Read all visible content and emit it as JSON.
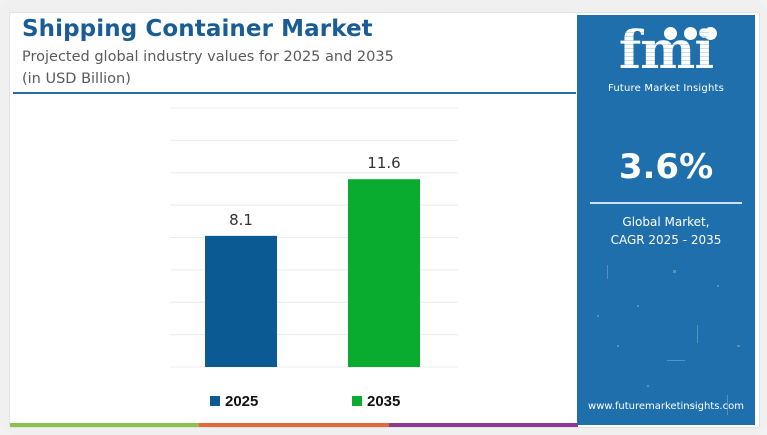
{
  "header": {
    "title": "Shipping Container Market",
    "subtitle": "Projected global industry values for 2025 and 2035",
    "unit_note": "(in USD Billion)"
  },
  "chart_data": {
    "type": "bar",
    "title": "Shipping Container Market",
    "subtitle": "Projected global industry values for 2025 and 2035",
    "ylabel": "USD Billion",
    "xlabel": "",
    "categories": [
      "2025",
      "2035"
    ],
    "values": [
      8.1,
      11.6
    ],
    "data_labels": [
      "8.1",
      "11.6"
    ],
    "colors": [
      "#0b5a93",
      "#0aac2f"
    ],
    "ylim": [
      0,
      16
    ],
    "grid": true,
    "grid_step": 2,
    "y_axis_ticks_visible": false,
    "legend": {
      "placement": "bottom",
      "entries": [
        {
          "label": "2025",
          "color": "#0b5a93"
        },
        {
          "label": "2035",
          "color": "#0aac2f"
        }
      ]
    }
  },
  "panel": {
    "brand_mark": "fmi",
    "brand_name": "Future Market Insights",
    "cagr_value": "3.6%",
    "cagr_label_line1": "Global Market,",
    "cagr_label_line2": "CAGR 2025 - 2035",
    "website": "www.futuremarketinsights.com",
    "background_color": "#1f6fad"
  },
  "footer_stripe_colors": [
    "#8bc34a",
    "#e4683a",
    "#8e3a92"
  ]
}
